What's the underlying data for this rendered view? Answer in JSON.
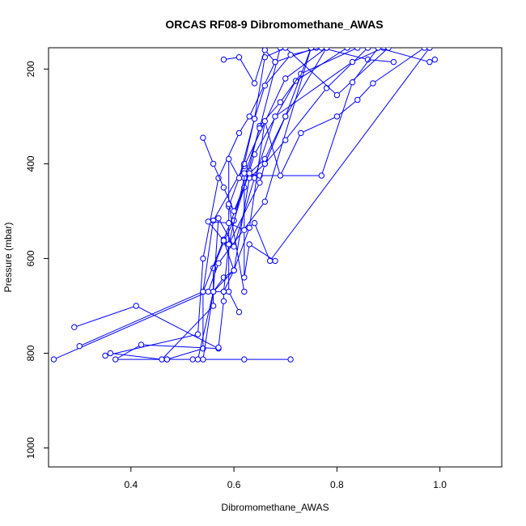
{
  "chart_data": {
    "type": "line",
    "title": "ORCAS RF08-9 Dibromomethane_AWAS",
    "xlabel": "Dibromomethane_AWAS",
    "ylabel": "Pressure (mbar)",
    "xlim": [
      0.24,
      1.12
    ],
    "ylim": [
      1040,
      155
    ],
    "y_reversed": true,
    "x_ticks": [
      0.4,
      0.6,
      0.8,
      1.0
    ],
    "x_tick_labels": [
      "0.4",
      "0.6",
      "0.8",
      "1.0"
    ],
    "y_ticks": [
      200,
      400,
      600,
      800,
      1000
    ],
    "y_tick_labels": [
      "200",
      "400",
      "600",
      "800",
      "1000"
    ],
    "grid": false,
    "legend": "none",
    "marker": "open-circle",
    "color": "#0000ff",
    "series": [
      {
        "x": [
          0.71,
          0.62,
          0.52,
          0.47,
          0.37,
          0.42,
          0.57,
          0.41,
          0.29
        ],
        "y": [
          813,
          813,
          813,
          813,
          813,
          782,
          790,
          700,
          745
        ]
      },
      {
        "x": [
          0.25,
          0.55,
          0.57,
          0.66,
          0.75
        ],
        "y": [
          813,
          670,
          610,
          480,
          155
        ]
      },
      {
        "x": [
          0.3,
          0.54,
          0.56,
          0.62,
          0.7,
          0.78
        ],
        "y": [
          785,
          670,
          520,
          405,
          220,
          155
        ]
      },
      {
        "x": [
          0.35,
          0.53,
          0.54,
          0.57,
          0.61,
          0.63,
          0.68,
          0.76
        ],
        "y": [
          805,
          760,
          600,
          430,
          335,
          300,
          185,
          155
        ]
      },
      {
        "x": [
          0.36,
          0.46,
          0.56,
          0.56,
          0.58,
          0.6,
          0.63,
          0.64,
          0.72,
          0.82
        ],
        "y": [
          800,
          813,
          700,
          620,
          565,
          520,
          415,
          380,
          225,
          155
        ]
      },
      {
        "x": [
          0.47,
          0.54,
          0.54,
          0.58,
          0.62,
          0.65,
          0.69,
          0.73,
          0.84
        ],
        "y": [
          813,
          790,
          670,
          560,
          450,
          320,
          270,
          210,
          155
        ]
      },
      {
        "x": [
          0.54,
          0.56,
          0.58,
          0.6,
          0.63,
          0.66,
          0.7,
          0.78,
          0.86
        ],
        "y": [
          813,
          670,
          640,
          625,
          430,
          400,
          350,
          240,
          155
        ]
      },
      {
        "x": [
          0.57,
          0.58,
          0.58,
          0.59,
          0.62,
          0.65,
          0.69
        ],
        "y": [
          788,
          690,
          670,
          570,
          430,
          325,
          155
        ]
      },
      {
        "x": [
          0.61,
          0.59,
          0.59,
          0.62,
          0.64,
          0.66,
          0.7,
          0.8,
          0.9
        ],
        "y": [
          713,
          670,
          490,
          400,
          305,
          175,
          155,
          255,
          155
        ]
      },
      {
        "x": [
          0.53,
          0.56,
          0.57,
          0.6,
          0.64,
          0.68,
          0.83,
          0.89
        ],
        "y": [
          813,
          670,
          515,
          575,
          430,
          300,
          185,
          155
        ]
      },
      {
        "x": [
          0.62,
          0.59,
          0.59,
          0.61,
          0.64,
          0.66,
          0.71,
          0.77,
          0.86,
          0.91
        ],
        "y": [
          670,
          485,
          390,
          430,
          305,
          235,
          170,
          155,
          180,
          185
        ]
      },
      {
        "x": [
          0.68,
          0.63,
          0.62,
          0.62,
          0.65,
          0.77,
          0.83,
          0.88,
          0.98,
          0.99
        ],
        "y": [
          605,
          570,
          640,
          420,
          425,
          425,
          228,
          155,
          185,
          180
        ]
      },
      {
        "x": [
          0.98,
          0.67,
          0.64,
          0.62,
          0.59,
          0.55,
          0.58,
          0.6,
          0.56,
          0.58,
          0.6,
          0.63,
          0.66,
          0.69,
          0.73,
          0.8,
          0.84,
          0.87,
          0.97,
          0.98
        ],
        "y": [
          155,
          605,
          525,
          540,
          525,
          522,
          562,
          625,
          670,
          670,
          625,
          535,
          310,
          425,
          335,
          300,
          265,
          230,
          155,
          155
        ]
      },
      {
        "x": [
          0.54,
          0.56,
          0.58,
          0.6,
          0.63,
          0.66,
          0.7,
          0.75
        ],
        "y": [
          345,
          400,
          450,
          500,
          420,
          390,
          300,
          155
        ]
      },
      {
        "x": [
          0.58,
          0.61,
          0.64,
          0.66,
          0.68
        ],
        "y": [
          180,
          175,
          230,
          160,
          185
        ]
      },
      {
        "x": [
          0.59,
          0.65,
          0.66,
          0.7,
          0.78
        ],
        "y": [
          570,
          440,
          400,
          300,
          155
        ]
      }
    ]
  }
}
